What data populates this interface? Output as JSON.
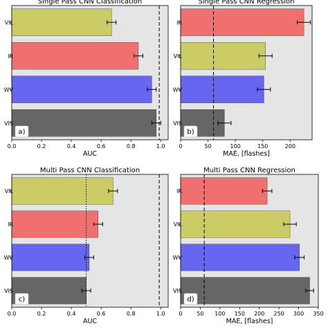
{
  "chart_data": [
    {
      "type": "bar",
      "orientation": "horizontal",
      "title": "Single Pass CNN Classification",
      "xlabel": "AUC",
      "panel_label": "a)",
      "xlim": [
        0,
        1.05
      ],
      "xticks": [
        "0.0",
        "0.2",
        "0.4",
        "0.6",
        "0.8",
        "1.0"
      ],
      "xtick_values": [
        0,
        0.2,
        0.4,
        0.6,
        0.8,
        1.0
      ],
      "categories": [
        "VIL",
        "IR",
        "WV",
        "VIS"
      ],
      "values": [
        0.67,
        0.85,
        0.94,
        0.97
      ],
      "errors": [
        0.03,
        0.03,
        0.03,
        0.03
      ],
      "colors": [
        "#cccc66",
        "#f07070",
        "#6666f0",
        "#666666"
      ],
      "reference_lines": [
        {
          "x": 0.99,
          "style": "dashed"
        }
      ],
      "grid": false,
      "background": "#e5e5e5"
    },
    {
      "type": "bar",
      "orientation": "horizontal",
      "title": "Single Pass CNN Regression",
      "xlabel": "MAE, [flashes]",
      "panel_label": "b)",
      "xlim": [
        0,
        240
      ],
      "xticks": [
        "0",
        "50",
        "100",
        "150",
        "200"
      ],
      "xtick_values": [
        0,
        50,
        100,
        150,
        200
      ],
      "categories": [
        "IR",
        "VIL",
        "WV",
        "VIS"
      ],
      "values": [
        225,
        155,
        152,
        80
      ],
      "errors": [
        12,
        12,
        12,
        12
      ],
      "colors": [
        "#f07070",
        "#cccc66",
        "#6666f0",
        "#666666"
      ],
      "reference_lines": [
        {
          "x": 60,
          "style": "dashed"
        }
      ],
      "grid": false,
      "background": "#e5e5e5"
    },
    {
      "type": "bar",
      "orientation": "horizontal",
      "title": "Multi Pass CNN Classification",
      "xlabel": "AUC",
      "panel_label": "c)",
      "xlim": [
        0,
        1.05
      ],
      "xticks": [
        "0.0",
        "0.2",
        "0.4",
        "0.6",
        "0.8",
        "1.0"
      ],
      "xtick_values": [
        0,
        0.2,
        0.4,
        0.6,
        0.8,
        1.0
      ],
      "categories": [
        "VIL",
        "IR",
        "WV",
        "VIS"
      ],
      "values": [
        0.68,
        0.58,
        0.52,
        0.5
      ],
      "errors": [
        0.03,
        0.03,
        0.03,
        0.03
      ],
      "colors": [
        "#cccc66",
        "#f07070",
        "#6666f0",
        "#666666"
      ],
      "reference_lines": [
        {
          "x": 0.5,
          "style": "dotted"
        },
        {
          "x": 0.99,
          "style": "dashed"
        }
      ],
      "grid": false,
      "background": "#e5e5e5"
    },
    {
      "type": "bar",
      "orientation": "horizontal",
      "title": "Multi Pass CNN Regression",
      "xlabel": "MAE, [flashes]",
      "panel_label": "d)",
      "xlim": [
        0,
        350
      ],
      "xticks": [
        "0",
        "50",
        "100",
        "150",
        "200",
        "250",
        "300",
        "350"
      ],
      "xtick_values": [
        0,
        50,
        100,
        150,
        200,
        250,
        300,
        350
      ],
      "categories": [
        "IR",
        "VIL",
        "WV",
        "VIS"
      ],
      "values": [
        220,
        278,
        302,
        328
      ],
      "errors": [
        12,
        16,
        12,
        10
      ],
      "colors": [
        "#f07070",
        "#cccc66",
        "#6666f0",
        "#666666"
      ],
      "reference_lines": [
        {
          "x": 60,
          "style": "dashed"
        }
      ],
      "grid": false,
      "background": "#e5e5e5"
    }
  ]
}
